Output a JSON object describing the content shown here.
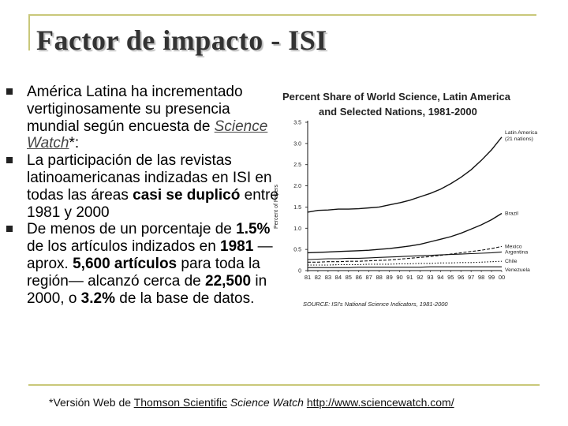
{
  "slide": {
    "title": "Factor de impacto  - ISI",
    "bullets": [
      {
        "a": "América Latina ha incrementado vertiginosamente su presencia mundial según encuesta de ",
        "link": "Science Watch",
        "b": "*:"
      },
      {
        "a": "La participación de las revistas latinoamericanas indizadas en ISI en todas las áreas ",
        "bold1": "casi se duplicó",
        "b": " entre 1981 y 2000"
      },
      {
        "a": "De menos de un porcentaje de ",
        "bold1": "1.5%",
        "b": " de los artículos indizados en ",
        "bold2": "1981",
        "c": " —aprox. ",
        "bold3": "5,600 artículos",
        "d": " para toda la región— alcanzó cerca de ",
        "bold4": "22,500",
        "e": " in 2000, o ",
        "bold5": "3.2%",
        "f": " de la base de datos."
      }
    ],
    "footer": {
      "prefix": "*Versión Web de ",
      "publisher": "Thomson Scientific",
      "italic": " Science Watch ",
      "url": "http://www.sciencewatch.com/"
    }
  },
  "chart_data": {
    "type": "line",
    "title_line1": "Percent Share of World Science, Latin America",
    "title_line2": "and Selected Nations, 1981-2000",
    "ylabel": "Percent of Papers",
    "xlabel": "",
    "ylim": [
      0,
      3.5
    ],
    "yticks": [
      0,
      0.5,
      1.0,
      1.5,
      2.0,
      2.5,
      3.0,
      3.5
    ],
    "ytick_labels": [
      "0",
      "0.5",
      "1.0",
      "1.5",
      "2.0",
      "2.5",
      "3.0",
      "3.5"
    ],
    "x": [
      1981,
      1982,
      1983,
      1984,
      1985,
      1986,
      1987,
      1988,
      1989,
      1990,
      1991,
      1992,
      1993,
      1994,
      1995,
      1996,
      1997,
      1998,
      1999,
      2000
    ],
    "xtick_labels": [
      "81",
      "82",
      "83",
      "84",
      "85",
      "86",
      "87",
      "88",
      "89",
      "90",
      "91",
      "92",
      "93",
      "94",
      "95",
      "96",
      "97",
      "98",
      "99",
      "00"
    ],
    "series": [
      {
        "name": "Latin America (21 nations)",
        "label_line1": "Latin America",
        "label_line2": "(21 nations)",
        "style": "solid",
        "values": [
          1.38,
          1.42,
          1.43,
          1.45,
          1.45,
          1.46,
          1.48,
          1.5,
          1.55,
          1.6,
          1.66,
          1.74,
          1.82,
          1.92,
          2.05,
          2.2,
          2.38,
          2.6,
          2.85,
          3.15
        ]
      },
      {
        "name": "Brazil",
        "label_line1": "Brazil",
        "label_line2": "",
        "style": "solid",
        "values": [
          0.42,
          0.43,
          0.44,
          0.45,
          0.46,
          0.47,
          0.48,
          0.5,
          0.52,
          0.55,
          0.58,
          0.62,
          0.68,
          0.74,
          0.8,
          0.88,
          0.98,
          1.08,
          1.2,
          1.35
        ]
      },
      {
        "name": "Mexico",
        "label_line1": "Mexico",
        "label_line2": "",
        "style": "dashed",
        "values": [
          0.2,
          0.2,
          0.21,
          0.21,
          0.22,
          0.22,
          0.23,
          0.24,
          0.25,
          0.27,
          0.29,
          0.31,
          0.33,
          0.36,
          0.39,
          0.42,
          0.45,
          0.48,
          0.52,
          0.57
        ]
      },
      {
        "name": "Argentina",
        "label_line1": "Argentina",
        "label_line2": "",
        "style": "solid",
        "values": [
          0.26,
          0.27,
          0.28,
          0.28,
          0.29,
          0.29,
          0.3,
          0.31,
          0.32,
          0.33,
          0.34,
          0.35,
          0.36,
          0.37,
          0.38,
          0.39,
          0.4,
          0.41,
          0.42,
          0.44
        ]
      },
      {
        "name": "Chile",
        "label_line1": "Chile",
        "label_line2": "",
        "style": "dotted",
        "values": [
          0.13,
          0.13,
          0.13,
          0.14,
          0.14,
          0.14,
          0.15,
          0.15,
          0.15,
          0.16,
          0.16,
          0.17,
          0.17,
          0.18,
          0.18,
          0.19,
          0.19,
          0.2,
          0.21,
          0.22
        ]
      },
      {
        "name": "Venezuela",
        "label_line1": "Venezuela",
        "label_line2": "",
        "style": "solid",
        "values": [
          0.07,
          0.07,
          0.07,
          0.07,
          0.07,
          0.08,
          0.08,
          0.08,
          0.08,
          0.08,
          0.08,
          0.08,
          0.09,
          0.09,
          0.09,
          0.09,
          0.09,
          0.09,
          0.09,
          0.09
        ]
      }
    ],
    "source": "SOURCE: ISI's National Science Indicators, 1981-2000",
    "colors": {
      "line": "#111111",
      "text": "#222222"
    }
  }
}
